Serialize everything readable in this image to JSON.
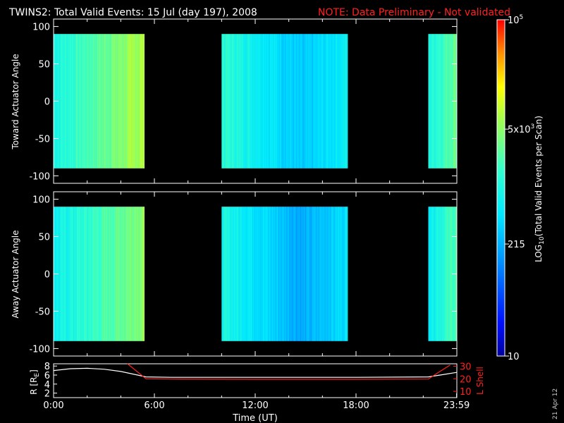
{
  "header": {
    "title": "TWINS2: Total Valid Events: 15 Jul (day 197), 2008",
    "note": "NOTE: Data Preliminary - Not validated"
  },
  "side_date": "21 Apr 12",
  "colors": {
    "note": "#ff2020",
    "shell": "#ff2020",
    "radius": "#ffffff",
    "frame": "#ffffff"
  },
  "chart_data": [
    {
      "type": "heatmap",
      "ylabel": "Toward Actuator Angle",
      "ylim": [
        -110,
        110
      ],
      "yticks": [
        "100",
        "50",
        "0",
        "-50",
        "-100"
      ],
      "xlim": [
        0,
        24
      ],
      "data_intervals_hours": [
        [
          0.0,
          5.4
        ],
        [
          10.0,
          17.5
        ],
        [
          22.3,
          24.0
        ]
      ],
      "angle_range": [
        -90,
        90
      ],
      "profile_note": "Higher events near segment edges, lowest near 14:00-16:00"
    },
    {
      "type": "heatmap",
      "ylabel": "Away Actuator Angle",
      "ylim": [
        -110,
        110
      ],
      "yticks": [
        "100",
        "50",
        "0",
        "-50",
        "-100"
      ],
      "xlim": [
        0,
        24
      ],
      "data_intervals_hours": [
        [
          0.0,
          5.4
        ],
        [
          10.0,
          17.5
        ],
        [
          22.3,
          24.0
        ]
      ],
      "angle_range": [
        -90,
        90
      ]
    },
    {
      "type": "line",
      "ylabel_left": "R [R",
      "ylabel_left_sub": "E",
      "ylabel_left_end": "]",
      "ylabel_right": "L Shell",
      "xlabel": "Time (UT)",
      "xticks": [
        "0:00",
        "6:00",
        "12:00",
        "18:00",
        "23:59"
      ],
      "yticks_left": [
        "8",
        "6",
        "4",
        "2"
      ],
      "yticks_right": [
        "30",
        "20",
        "10"
      ],
      "ylim_left": [
        1,
        8.5
      ],
      "ylim_right": [
        5,
        32
      ],
      "series": [
        {
          "name": "R",
          "color": "#ffffff",
          "x": [
            0,
            1,
            2,
            3,
            4,
            5,
            5.5,
            7,
            12,
            18,
            22.3,
            23,
            24
          ],
          "values": [
            7.0,
            7.4,
            7.5,
            7.3,
            6.8,
            6.0,
            5.6,
            5.5,
            5.5,
            5.5,
            5.6,
            6.0,
            6.6
          ]
        },
        {
          "name": "L Shell",
          "color": "#ff2020",
          "x": [
            4.4,
            5.5,
            7,
            12,
            18,
            22.3,
            23,
            23.6
          ],
          "values": [
            32,
            20,
            19.8,
            19.6,
            19.6,
            19.8,
            26,
            31
          ]
        }
      ]
    },
    {
      "type": "heatmap",
      "role": "colorbar",
      "ylabel": "LOG",
      "ylabel_sub": "10",
      "ylabel_rest": "(Total Valid Events per Scan)",
      "tick_labels": [
        "10",
        "215",
        "5x10",
        "10"
      ],
      "tick_sups": [
        "",
        "",
        "3",
        "5"
      ],
      "range": [
        10,
        100000
      ],
      "scale": "log"
    }
  ]
}
